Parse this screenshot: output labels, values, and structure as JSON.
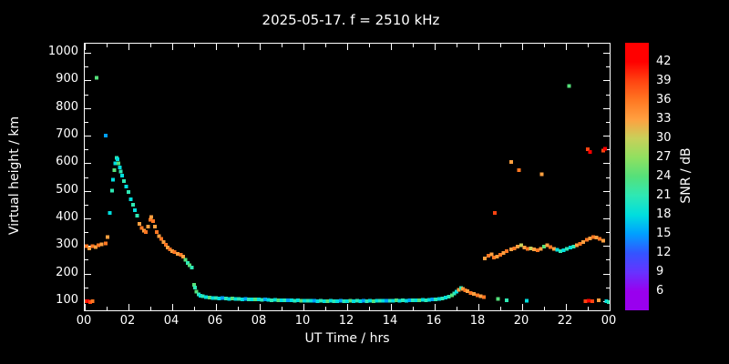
{
  "title": "2025-05-17. f = 2510 kHz",
  "colors": {
    "background": "#000000",
    "axis": "#ffffff",
    "text": "#ffffff"
  },
  "chart_data": {
    "type": "scatter",
    "title": "2025-05-17. f = 2510 kHz",
    "xlabel": "UT Time / hrs",
    "ylabel": "Virtual height / km",
    "colorbar_label": "SNR / dB",
    "grid": false,
    "xlim": [
      0,
      24
    ],
    "ylim": [
      67,
      1033
    ],
    "x_tick_hours": [
      0,
      2,
      4,
      6,
      8,
      10,
      12,
      14,
      16,
      18,
      20,
      22,
      24
    ],
    "x_ticks": [
      "00",
      "02",
      "04",
      "06",
      "08",
      "10",
      "12",
      "14",
      "16",
      "18",
      "20",
      "22",
      "00"
    ],
    "y_ticks": [
      100,
      200,
      300,
      400,
      500,
      600,
      700,
      800,
      900,
      1000
    ],
    "colorbar_ticks": [
      6,
      9,
      12,
      15,
      18,
      21,
      24,
      27,
      30,
      33,
      36,
      39,
      42
    ],
    "colorbar_domain": [
      3,
      45
    ],
    "color_scale": [
      {
        "value": 6,
        "color": "#9900ee"
      },
      {
        "value": 9,
        "color": "#6633ff"
      },
      {
        "value": 12,
        "color": "#3355ff"
      },
      {
        "value": 15,
        "color": "#00a0ff"
      },
      {
        "value": 18,
        "color": "#00dede"
      },
      {
        "value": 21,
        "color": "#2ee8b4"
      },
      {
        "value": 24,
        "color": "#55e07a"
      },
      {
        "value": 27,
        "color": "#90e060"
      },
      {
        "value": 30,
        "color": "#c8d05a"
      },
      {
        "value": 33,
        "color": "#ffa040"
      },
      {
        "value": 36,
        "color": "#ff7722"
      },
      {
        "value": 39,
        "color": "#ff4411"
      },
      {
        "value": 42,
        "color": "#ff0000"
      }
    ],
    "points": [
      [
        0.05,
        100,
        39
      ],
      [
        0.15,
        100,
        42
      ],
      [
        0.25,
        96,
        39
      ],
      [
        0.35,
        100,
        36
      ],
      [
        0.08,
        300,
        36
      ],
      [
        0.2,
        292,
        33
      ],
      [
        0.35,
        300,
        36
      ],
      [
        0.5,
        296,
        33
      ],
      [
        0.62,
        302,
        36
      ],
      [
        0.78,
        306,
        33
      ],
      [
        0.95,
        310,
        36
      ],
      [
        1.05,
        332,
        33
      ],
      [
        0.55,
        910,
        24
      ],
      [
        0.95,
        700,
        15
      ],
      [
        1.15,
        420,
        18
      ],
      [
        1.25,
        500,
        21
      ],
      [
        1.3,
        540,
        18
      ],
      [
        1.35,
        575,
        24
      ],
      [
        1.4,
        600,
        18
      ],
      [
        1.45,
        620,
        21
      ],
      [
        1.5,
        615,
        18
      ],
      [
        1.55,
        600,
        24
      ],
      [
        1.6,
        585,
        18
      ],
      [
        1.65,
        570,
        21
      ],
      [
        1.7,
        555,
        18
      ],
      [
        1.8,
        535,
        21
      ],
      [
        1.9,
        515,
        18
      ],
      [
        2.0,
        495,
        21
      ],
      [
        2.1,
        470,
        18
      ],
      [
        2.2,
        450,
        21
      ],
      [
        2.3,
        430,
        18
      ],
      [
        2.4,
        410,
        21
      ],
      [
        2.5,
        380,
        33
      ],
      [
        2.6,
        365,
        36
      ],
      [
        2.7,
        355,
        33
      ],
      [
        2.8,
        350,
        36
      ],
      [
        2.9,
        370,
        33
      ],
      [
        3.0,
        395,
        36
      ],
      [
        3.05,
        405,
        33
      ],
      [
        3.12,
        390,
        36
      ],
      [
        3.2,
        370,
        33
      ],
      [
        3.3,
        350,
        36
      ],
      [
        3.4,
        335,
        33
      ],
      [
        3.5,
        325,
        36
      ],
      [
        3.6,
        315,
        33
      ],
      [
        3.7,
        305,
        36
      ],
      [
        3.8,
        295,
        33
      ],
      [
        3.9,
        288,
        36
      ],
      [
        4.0,
        282,
        33
      ],
      [
        4.1,
        278,
        36
      ],
      [
        4.25,
        272,
        33
      ],
      [
        4.4,
        268,
        36
      ],
      [
        4.5,
        262,
        33
      ],
      [
        4.6,
        250,
        24
      ],
      [
        4.7,
        238,
        21
      ],
      [
        4.8,
        230,
        24
      ],
      [
        4.9,
        222,
        21
      ],
      [
        5.0,
        160,
        24
      ],
      [
        5.05,
        150,
        21
      ],
      [
        5.1,
        135,
        24
      ],
      [
        5.2,
        125,
        21
      ],
      [
        5.3,
        120,
        18
      ],
      [
        5.4,
        118,
        21
      ],
      [
        5.55,
        115,
        18
      ],
      [
        5.7,
        113,
        24
      ],
      [
        5.85,
        112,
        18
      ],
      [
        6.0,
        112,
        21
      ],
      [
        6.15,
        110,
        18
      ],
      [
        6.3,
        111,
        15
      ],
      [
        6.45,
        110,
        21
      ],
      [
        6.6,
        109,
        18
      ],
      [
        6.75,
        110,
        24
      ],
      [
        6.9,
        108,
        18
      ],
      [
        7.05,
        108,
        21
      ],
      [
        7.2,
        107,
        18
      ],
      [
        7.35,
        108,
        15
      ],
      [
        7.5,
        107,
        21
      ],
      [
        7.65,
        106,
        18
      ],
      [
        7.8,
        107,
        24
      ],
      [
        7.95,
        106,
        18
      ],
      [
        8.1,
        105,
        21
      ],
      [
        8.25,
        106,
        15
      ],
      [
        8.4,
        105,
        18
      ],
      [
        8.55,
        104,
        21
      ],
      [
        8.7,
        105,
        18
      ],
      [
        8.85,
        104,
        24
      ],
      [
        9.0,
        104,
        18
      ],
      [
        9.15,
        103,
        21
      ],
      [
        9.3,
        104,
        15
      ],
      [
        9.45,
        103,
        18
      ],
      [
        9.6,
        102,
        21
      ],
      [
        9.75,
        103,
        18
      ],
      [
        9.9,
        102,
        24
      ],
      [
        10.05,
        102,
        18
      ],
      [
        10.2,
        101,
        21
      ],
      [
        10.35,
        102,
        18
      ],
      [
        10.5,
        101,
        15
      ],
      [
        10.65,
        100,
        18
      ],
      [
        10.8,
        101,
        21
      ],
      [
        10.95,
        100,
        18
      ],
      [
        11.1,
        100,
        24
      ],
      [
        11.25,
        101,
        18
      ],
      [
        11.4,
        100,
        21
      ],
      [
        11.55,
        100,
        18
      ],
      [
        11.7,
        101,
        15
      ],
      [
        11.85,
        100,
        21
      ],
      [
        12.0,
        100,
        18
      ],
      [
        12.15,
        101,
        24
      ],
      [
        12.3,
        100,
        18
      ],
      [
        12.45,
        101,
        21
      ],
      [
        12.6,
        100,
        18
      ],
      [
        12.75,
        101,
        15
      ],
      [
        12.9,
        100,
        21
      ],
      [
        13.05,
        101,
        18
      ],
      [
        13.2,
        100,
        24
      ],
      [
        13.35,
        101,
        18
      ],
      [
        13.5,
        102,
        21
      ],
      [
        13.65,
        101,
        18
      ],
      [
        13.8,
        102,
        15
      ],
      [
        13.95,
        101,
        21
      ],
      [
        14.1,
        102,
        18
      ],
      [
        14.25,
        103,
        24
      ],
      [
        14.4,
        102,
        18
      ],
      [
        14.55,
        103,
        21
      ],
      [
        14.7,
        102,
        18
      ],
      [
        14.85,
        103,
        15
      ],
      [
        15.0,
        104,
        21
      ],
      [
        15.15,
        103,
        18
      ],
      [
        15.3,
        104,
        24
      ],
      [
        15.45,
        105,
        18
      ],
      [
        15.6,
        104,
        21
      ],
      [
        15.75,
        105,
        18
      ],
      [
        15.9,
        106,
        15
      ],
      [
        16.05,
        107,
        21
      ],
      [
        16.2,
        108,
        18
      ],
      [
        16.35,
        110,
        21
      ],
      [
        16.5,
        113,
        18
      ],
      [
        16.65,
        117,
        21
      ],
      [
        16.8,
        122,
        24
      ],
      [
        16.9,
        128,
        21
      ],
      [
        17.0,
        135,
        18
      ],
      [
        17.1,
        142,
        33
      ],
      [
        17.2,
        148,
        21
      ],
      [
        17.3,
        145,
        33
      ],
      [
        17.4,
        140,
        36
      ],
      [
        17.5,
        136,
        33
      ],
      [
        17.65,
        130,
        36
      ],
      [
        17.8,
        126,
        33
      ],
      [
        17.95,
        122,
        36
      ],
      [
        18.1,
        118,
        33
      ],
      [
        18.25,
        115,
        36
      ],
      [
        18.3,
        255,
        33
      ],
      [
        18.45,
        265,
        36
      ],
      [
        18.6,
        270,
        33
      ],
      [
        18.7,
        258,
        36
      ],
      [
        18.85,
        262,
        33
      ],
      [
        18.75,
        420,
        39
      ],
      [
        18.9,
        108,
        24
      ],
      [
        19.3,
        104,
        21
      ],
      [
        20.2,
        102,
        18
      ],
      [
        19.0,
        268,
        36
      ],
      [
        19.15,
        275,
        33
      ],
      [
        19.3,
        282,
        36
      ],
      [
        19.5,
        288,
        33
      ],
      [
        19.65,
        292,
        36
      ],
      [
        19.8,
        298,
        33
      ],
      [
        19.95,
        302,
        30
      ],
      [
        19.5,
        605,
        33
      ],
      [
        19.85,
        575,
        36
      ],
      [
        20.1,
        295,
        33
      ],
      [
        20.25,
        290,
        36
      ],
      [
        20.4,
        292,
        30
      ],
      [
        20.55,
        288,
        33
      ],
      [
        20.7,
        285,
        36
      ],
      [
        20.85,
        290,
        33
      ],
      [
        20.9,
        560,
        33
      ],
      [
        21.0,
        298,
        24
      ],
      [
        21.15,
        302,
        33
      ],
      [
        21.3,
        296,
        36
      ],
      [
        21.45,
        290,
        33
      ],
      [
        21.6,
        286,
        18
      ],
      [
        21.75,
        282,
        21
      ],
      [
        21.9,
        285,
        18
      ],
      [
        22.05,
        290,
        21
      ],
      [
        22.15,
        880,
        24
      ],
      [
        22.2,
        295,
        18
      ],
      [
        22.35,
        298,
        21
      ],
      [
        22.5,
        302,
        33
      ],
      [
        22.65,
        308,
        36
      ],
      [
        22.8,
        315,
        33
      ],
      [
        22.95,
        322,
        36
      ],
      [
        23.0,
        650,
        39
      ],
      [
        23.1,
        640,
        42
      ],
      [
        23.7,
        645,
        39
      ],
      [
        23.8,
        652,
        42
      ],
      [
        23.1,
        328,
        33
      ],
      [
        23.25,
        332,
        36
      ],
      [
        23.4,
        330,
        33
      ],
      [
        23.55,
        325,
        36
      ],
      [
        23.7,
        320,
        33
      ],
      [
        22.9,
        100,
        39
      ],
      [
        23.05,
        102,
        42
      ],
      [
        23.2,
        100,
        39
      ],
      [
        23.5,
        103,
        33
      ],
      [
        23.85,
        100,
        18
      ],
      [
        23.95,
        97,
        21
      ]
    ]
  }
}
